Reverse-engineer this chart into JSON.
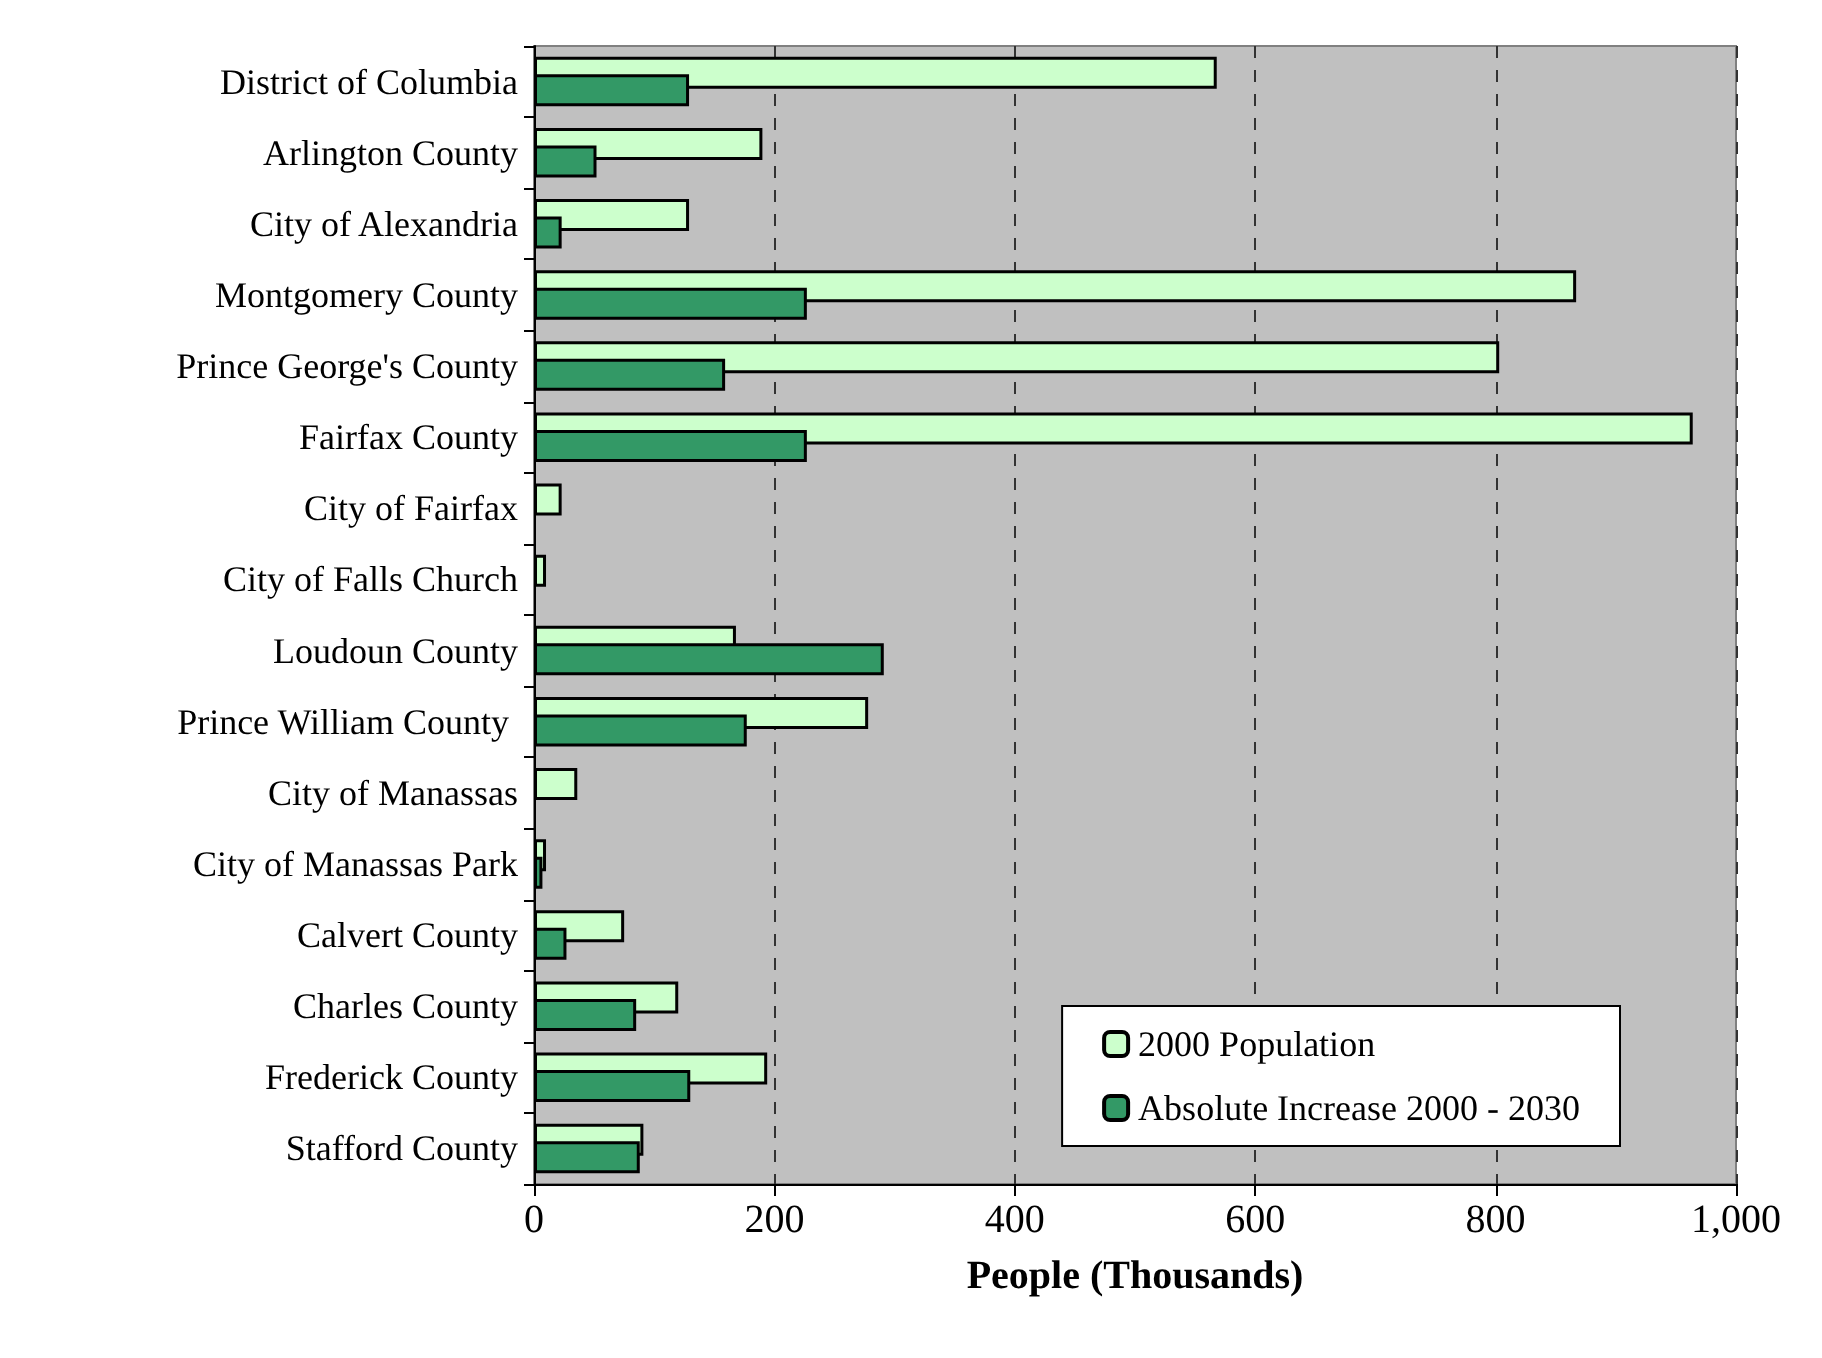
{
  "chart_data": {
    "type": "bar",
    "orientation": "horizontal",
    "xlabel": "People (Thousands)",
    "categories": [
      "District of Columbia",
      "Arlington County",
      "City of Alexandria",
      "Montgomery County",
      "Prince George's County",
      "Fairfax County",
      "City of Fairfax",
      "City of Falls Church",
      "Loudoun County",
      "Prince William County ",
      "City of Manassas",
      "City of Manassas Park",
      "Calvert County",
      "Charles County",
      "Frederick County",
      "Stafford County"
    ],
    "series": [
      {
        "name": "2000 Population",
        "color": "#ccffcc",
        "values": [
          568,
          190,
          129,
          867,
          803,
          964,
          23,
          10,
          168,
          278,
          36,
          10,
          75,
          120,
          194,
          91
        ]
      },
      {
        "name": "Absolute Increase 2000 - 2030",
        "color": "#339966",
        "values": [
          129,
          52,
          23,
          227,
          159,
          227,
          null,
          null,
          291,
          177,
          null,
          7,
          27,
          85,
          130,
          88
        ]
      }
    ],
    "xlim": [
      0,
      1000
    ],
    "xticks": [
      0,
      200,
      400,
      600,
      800,
      {
        "value": 1000,
        "label": "1,000"
      }
    ],
    "grid": "x",
    "legend": "bottom right"
  }
}
